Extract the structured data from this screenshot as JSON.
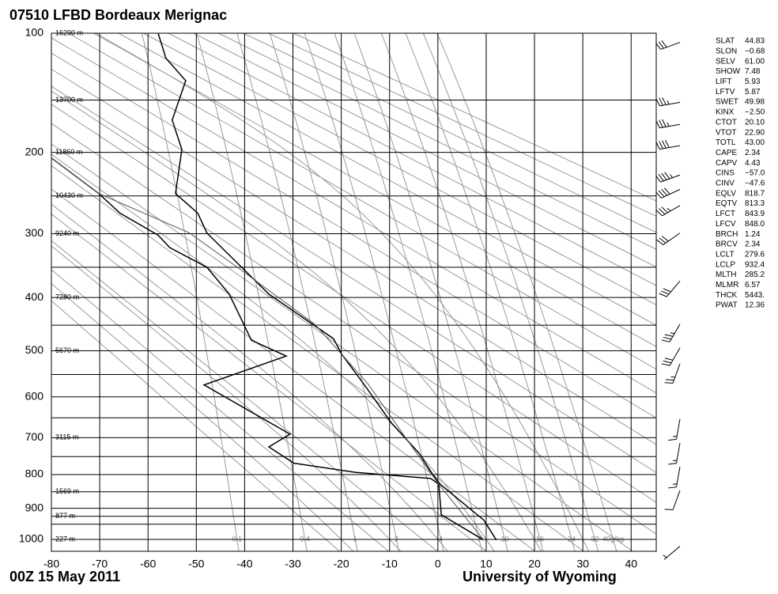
{
  "chart_data": {
    "type": "sounding",
    "title": "07510 LFBD Bordeaux Merignac",
    "date": "00Z 15 May 2011",
    "source": "University of Wyoming",
    "yscale": "stuve",
    "xlim": [
      -80,
      45.2
    ],
    "ylim": [
      1040,
      100
    ],
    "xticks": [
      -80,
      -70,
      -60,
      -50,
      -40,
      -30,
      -20,
      -10,
      0,
      10,
      20,
      30,
      40
    ],
    "yticks": [
      100,
      200,
      300,
      400,
      500,
      600,
      700,
      800,
      900,
      1000
    ],
    "isobars": [
      100,
      150,
      200,
      250,
      300,
      350,
      400,
      450,
      500,
      550,
      600,
      650,
      700,
      750,
      800,
      850,
      900,
      925,
      950,
      1000
    ],
    "height_labels": [
      {
        "value": 100,
        "label": "16290 m"
      },
      {
        "value": 150,
        "label": "13700 m"
      },
      {
        "value": 200,
        "label": "11860 m"
      },
      {
        "value": 250,
        "label": "10430 m"
      },
      {
        "value": 300,
        "label": "9240 m"
      },
      {
        "value": 400,
        "label": "7280 m"
      },
      {
        "value": 500,
        "label": "5670 m"
      },
      {
        "value": 700,
        "label": "3115 m"
      },
      {
        "value": 850,
        "label": "1569 m"
      },
      {
        "value": 925,
        "label": "877 m"
      },
      {
        "value": 1000,
        "label": "227 m"
      }
    ],
    "dry_adiabats": [
      250,
      260,
      270,
      280,
      290,
      300,
      310,
      320,
      330,
      340,
      350,
      360,
      370,
      380,
      390,
      400,
      410,
      420,
      430,
      440,
      450,
      460,
      470
    ],
    "moist_adiabats": [
      -20,
      -10,
      0,
      10,
      20,
      30
    ],
    "mixing_ratios": [
      {
        "value": 0.1,
        "label": "0.1"
      },
      {
        "value": 0.4,
        "label": "0.4"
      },
      1,
      2,
      4,
      7,
      10,
      16,
      24,
      32,
      {
        "value": 40,
        "label": "40g/kg"
      }
    ],
    "grid_color": "#000000",
    "background_color": "#999999",
    "series": [
      {
        "color": "#000000",
        "pressure": [
          1002,
          937,
          828,
          801,
          741,
          663,
          570,
          507,
          476,
          394,
          299,
          272,
          247,
          197,
          168,
          134,
          117,
          100
        ],
        "temperature": [
          12.1,
          9.5,
          0.5,
          -1.0,
          -3.9,
          -9.6,
          -15.4,
          -19.9,
          -21.6,
          -35.0,
          -47.8,
          -49.7,
          -54.3,
          -53.0,
          -55.0,
          -52.2,
          -56.3,
          -57.9
        ]
      },
      {
        "color": "#000000",
        "pressure": [
          1002,
          920,
          828,
          811,
          794,
          768,
          724,
          691,
          573,
          511,
          479,
          394,
          350,
          320,
          302,
          272,
          247,
          206
        ],
        "temperature": [
          9.5,
          0.7,
          0.2,
          -1.5,
          -17.0,
          -29.8,
          -35.0,
          -30.6,
          -48.4,
          -31.4,
          -38.6,
          -43.2,
          -47.8,
          -55.5,
          -57.9,
          -65.8,
          -70.2,
          -80.0
        ]
      },
      {
        "color": "#555555",
        "pressure": [
          1002,
          828,
          691,
          570,
          448,
          350,
          299,
          247,
          206
        ],
        "temperature": [
          9.5,
          0.2,
          -7.2,
          -14.5,
          -25.5,
          -41.5,
          -51.4,
          -70.2,
          -80.0
        ]
      }
    ],
    "winds": {
      "pressure": [
        106,
        152,
        172,
        193,
        225,
        242,
        262,
        299,
        372,
        448,
        494,
        527,
        653,
        714,
        778,
        846,
        1023
      ],
      "direction": [
        250,
        260,
        260,
        260,
        250,
        245,
        240,
        235,
        220,
        210,
        210,
        200,
        190,
        190,
        190,
        200,
        230
      ],
      "speed": [
        30,
        35,
        35,
        40,
        45,
        40,
        35,
        30,
        30,
        35,
        30,
        25,
        15,
        15,
        15,
        10,
        5
      ]
    },
    "stats": [
      {
        "label": "SLAT",
        "value": "44.83"
      },
      {
        "label": "SLON",
        "value": "−0.68"
      },
      {
        "label": "SELV",
        "value": "61.00"
      },
      {
        "label": "SHOW",
        "value": "7.48"
      },
      {
        "label": "LIFT",
        "value": "5.93"
      },
      {
        "label": "LFTV",
        "value": "5.87"
      },
      {
        "label": "SWET",
        "value": "49.98"
      },
      {
        "label": "KINX",
        "value": "−2.50"
      },
      {
        "label": "CTOT",
        "value": "20.10"
      },
      {
        "label": "VTOT",
        "value": "22.90"
      },
      {
        "label": "TOTL",
        "value": "43.00"
      },
      {
        "label": "CAPE",
        "value": "2.34"
      },
      {
        "label": "CAPV",
        "value": "4.43"
      },
      {
        "label": "CINS",
        "value": "−57.0"
      },
      {
        "label": "CINV",
        "value": "−47.6"
      },
      {
        "label": "EQLV",
        "value": "818.7"
      },
      {
        "label": "EQTV",
        "value": "813.3"
      },
      {
        "label": "LFCT",
        "value": "843.9"
      },
      {
        "label": "LFCV",
        "value": "848.0"
      },
      {
        "label": "BRCH",
        "value": "1.24"
      },
      {
        "label": "BRCV",
        "value": "2.34"
      },
      {
        "label": "LCLT",
        "value": "279.6"
      },
      {
        "label": "LCLP",
        "value": "932.4"
      },
      {
        "label": "MLTH",
        "value": "285.2"
      },
      {
        "label": "MLMR",
        "value": "6.57"
      },
      {
        "label": "THCK",
        "value": "5443."
      },
      {
        "label": "PWAT",
        "value": "12.36"
      }
    ]
  }
}
